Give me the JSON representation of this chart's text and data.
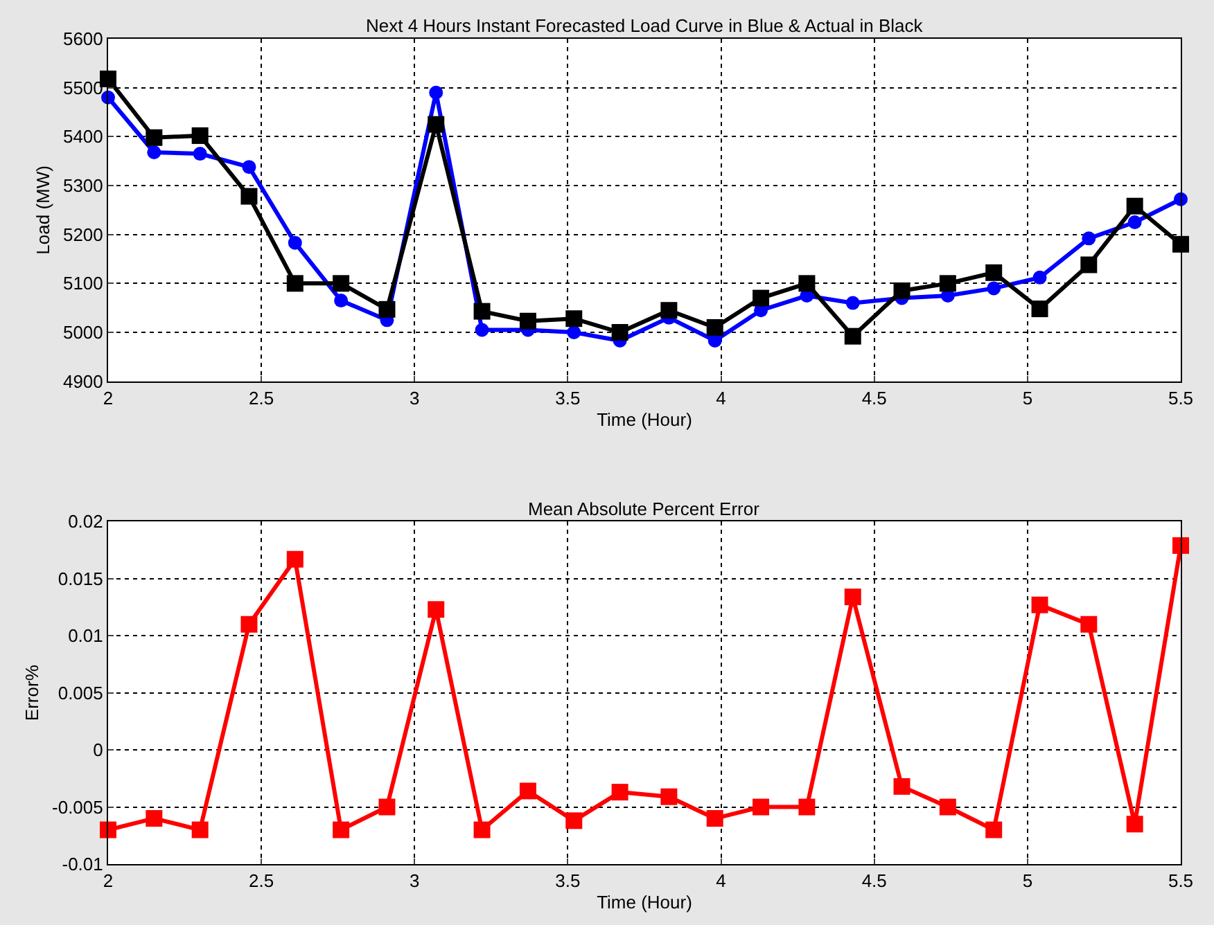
{
  "chart_data": [
    {
      "type": "line",
      "title": "Next 4 Hours Instant Forecasted Load Curve in Blue & Actual in Black",
      "xlabel": "Time (Hour)",
      "ylabel": "Load (MW)",
      "x": [
        2,
        2.15,
        2.3,
        2.46,
        2.61,
        2.76,
        2.91,
        3.07,
        3.22,
        3.37,
        3.52,
        3.67,
        3.83,
        3.98,
        4.13,
        4.28,
        4.43,
        4.59,
        4.74,
        4.89,
        5.04,
        5.2,
        5.35,
        5.5
      ],
      "series": [
        {
          "color": "#0000ff",
          "marker": "circle",
          "values": [
            5480,
            5368,
            5365,
            5338,
            5183,
            5065,
            5025,
            5490,
            5005,
            5005,
            5000,
            4983,
            5030,
            4983,
            5045,
            5075,
            5060,
            5070,
            5075,
            5090,
            5112,
            5192,
            5225,
            5272
          ]
        },
        {
          "color": "#000000",
          "marker": "square",
          "values": [
            5518,
            5398,
            5402,
            5278,
            5100,
            5100,
            5047,
            5425,
            5043,
            5023,
            5028,
            5000,
            5045,
            5010,
            5070,
            5100,
            4992,
            5085,
            5100,
            5122,
            5048,
            5138,
            5258,
            5180
          ]
        }
      ],
      "xlim": [
        2,
        5.5
      ],
      "xticks": [
        2,
        2.5,
        3,
        3.5,
        4,
        4.5,
        5,
        5.5
      ],
      "ylim": [
        4900,
        5600
      ],
      "yticks": [
        4900,
        5000,
        5100,
        5200,
        5300,
        5400,
        5500,
        5600
      ],
      "grid": true,
      "line_style": "solid"
    },
    {
      "type": "line",
      "title": "Mean Absolute Percent Error",
      "xlabel": "Time (Hour)",
      "ylabel": "Error%",
      "x": [
        2,
        2.15,
        2.3,
        2.46,
        2.61,
        2.76,
        2.91,
        3.07,
        3.22,
        3.37,
        3.52,
        3.67,
        3.83,
        3.98,
        4.13,
        4.28,
        4.43,
        4.59,
        4.74,
        4.89,
        5.04,
        5.2,
        5.35,
        5.5
      ],
      "series": [
        {
          "color": "#ff0000",
          "values": [
            -0.007,
            -0.006,
            -0.007,
            0.011,
            0.0167,
            -0.007,
            -0.005,
            0.0123,
            -0.007,
            -0.0036,
            -0.0062,
            -0.0037,
            -0.0041,
            -0.006,
            -0.005,
            -0.005,
            0.0134,
            -0.0032,
            -0.005,
            -0.007,
            0.0127,
            0.011,
            -0.0065,
            0.0179
          ]
        }
      ],
      "xlim": [
        2,
        5.5
      ],
      "xticks": [
        2,
        2.5,
        3,
        3.5,
        4,
        4.5,
        5,
        5.5
      ],
      "ylim": [
        -0.01,
        0.02
      ],
      "yticks": [
        -0.01,
        -0.005,
        0,
        0.005,
        0.01,
        0.015,
        0.02
      ],
      "grid": true,
      "marker": "square",
      "line_style": "solid"
    }
  ]
}
